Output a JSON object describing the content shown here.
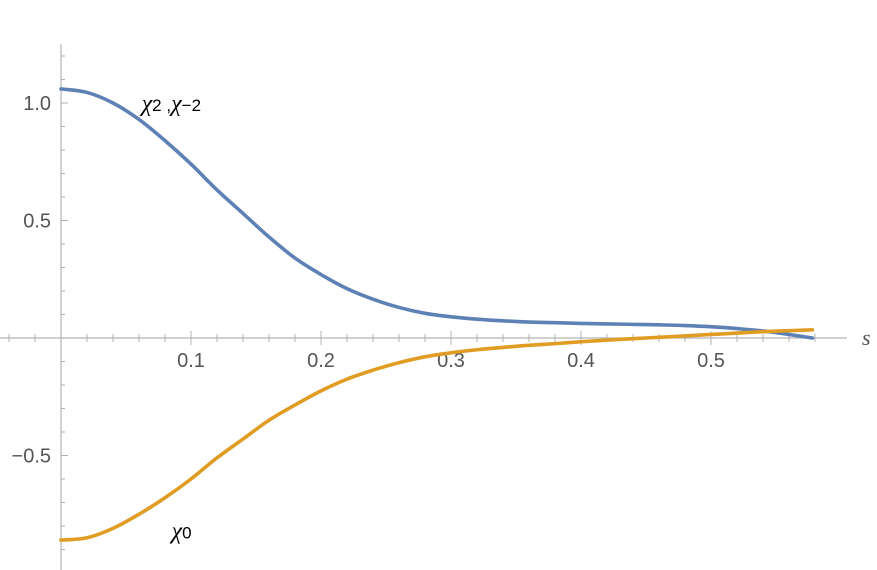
{
  "chart_data": {
    "type": "line",
    "title": "",
    "xlabel": "s",
    "ylabel": "",
    "xlim": [
      0,
      0.58
    ],
    "ylim": [
      -0.95,
      1.25
    ],
    "grid": false,
    "x_ticks": [
      0.1,
      0.2,
      0.3,
      0.4,
      0.5
    ],
    "y_ticks": [
      -0.5,
      0.5,
      1.0
    ],
    "x_tick_labels": [
      "0.1",
      "0.2",
      "0.3",
      "0.4",
      "0.5"
    ],
    "y_tick_labels": [
      "−0.5",
      "0.5",
      "1.0"
    ],
    "x_minor_step": 0.02,
    "y_minor_step": 0.1,
    "series": [
      {
        "name": "χ2 ,χ−2",
        "label_main_1": "χ",
        "label_sub_1": "2",
        "label_sep": " ,",
        "label_main_2": "χ",
        "label_sub_2": "−2",
        "color": "#5E81B5",
        "label_at": [
          0.062,
          1.0
        ],
        "x": [
          0,
          0.02,
          0.04,
          0.06,
          0.08,
          0.1,
          0.12,
          0.14,
          0.16,
          0.18,
          0.2,
          0.22,
          0.24,
          0.26,
          0.28,
          0.3,
          0.32,
          0.34,
          0.36,
          0.38,
          0.4,
          0.42,
          0.44,
          0.46,
          0.48,
          0.5,
          0.52,
          0.54,
          0.56,
          0.578
        ],
        "y": [
          1.06,
          1.045,
          1.0,
          0.93,
          0.84,
          0.74,
          0.63,
          0.53,
          0.43,
          0.34,
          0.27,
          0.21,
          0.165,
          0.13,
          0.105,
          0.09,
          0.08,
          0.073,
          0.068,
          0.065,
          0.062,
          0.06,
          0.058,
          0.056,
          0.053,
          0.048,
          0.04,
          0.03,
          0.015,
          0.0
        ]
      },
      {
        "name": "χ0",
        "label_main_1": "χ",
        "label_sub_1": "0",
        "color": "#E19C24",
        "label_at": [
          0.085,
          -0.82
        ],
        "x": [
          0,
          0.02,
          0.04,
          0.06,
          0.08,
          0.1,
          0.12,
          0.14,
          0.16,
          0.18,
          0.2,
          0.22,
          0.24,
          0.26,
          0.28,
          0.3,
          0.32,
          0.34,
          0.36,
          0.38,
          0.4,
          0.42,
          0.44,
          0.46,
          0.48,
          0.5,
          0.52,
          0.54,
          0.56,
          0.578
        ],
        "y": [
          -0.86,
          -0.85,
          -0.81,
          -0.75,
          -0.68,
          -0.6,
          -0.51,
          -0.43,
          -0.35,
          -0.285,
          -0.225,
          -0.175,
          -0.137,
          -0.105,
          -0.08,
          -0.063,
          -0.05,
          -0.04,
          -0.031,
          -0.024,
          -0.016,
          -0.009,
          -0.003,
          0.003,
          0.009,
          0.015,
          0.021,
          0.027,
          0.031,
          0.035
        ]
      }
    ]
  }
}
